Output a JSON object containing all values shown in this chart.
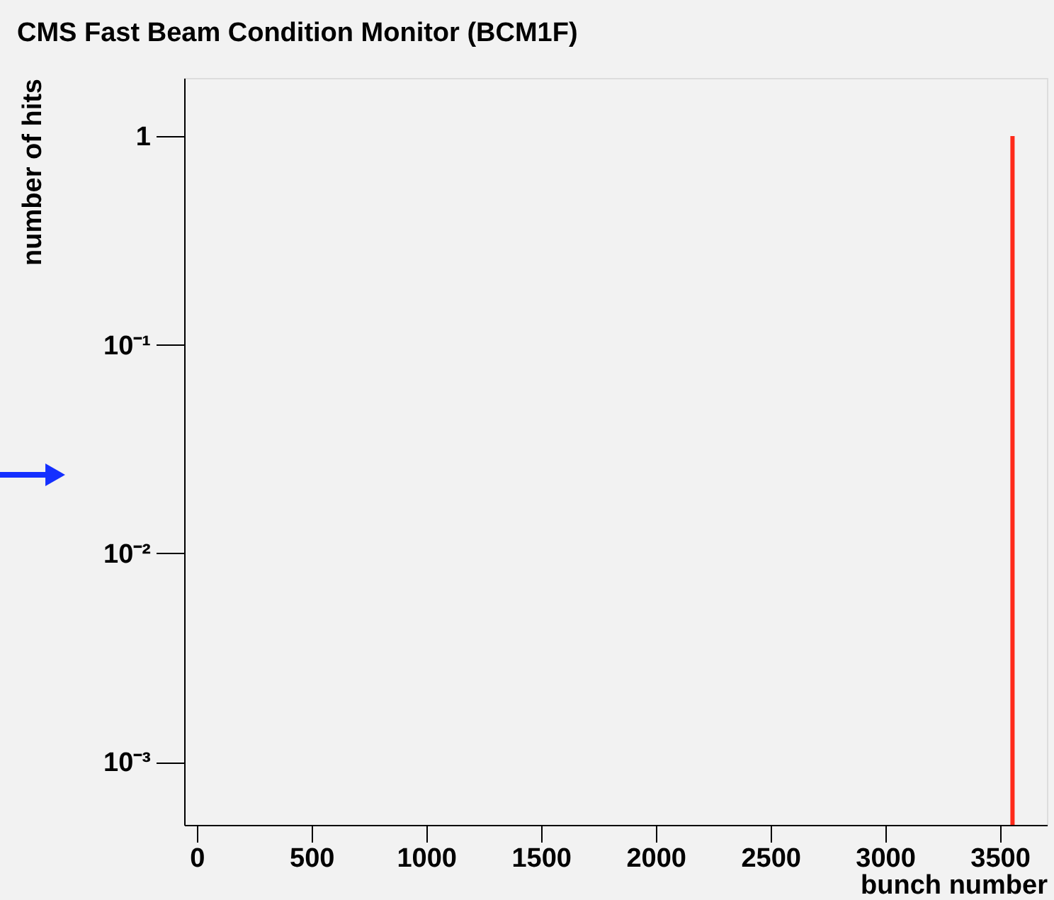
{
  "chart_data": {
    "type": "bar",
    "title": "CMS Fast Beam Condition Monitor (BCM1F)",
    "xlabel": "bunch number",
    "ylabel": "number of hits",
    "x": [
      3555
    ],
    "values": [
      1
    ],
    "color": "#ff2a1a",
    "xlim": [
      -55,
      3705
    ],
    "xticks": [
      0,
      500,
      1000,
      1500,
      2000,
      2500,
      3000,
      3500
    ],
    "ylim": [
      0.0005,
      1.9
    ],
    "yticks": [
      {
        "value": 0.001,
        "label": "10⁻³"
      },
      {
        "value": 0.01,
        "label": "10⁻²"
      },
      {
        "value": 0.1,
        "label": "10⁻¹"
      },
      1
    ],
    "log": "y",
    "grid": false
  }
}
